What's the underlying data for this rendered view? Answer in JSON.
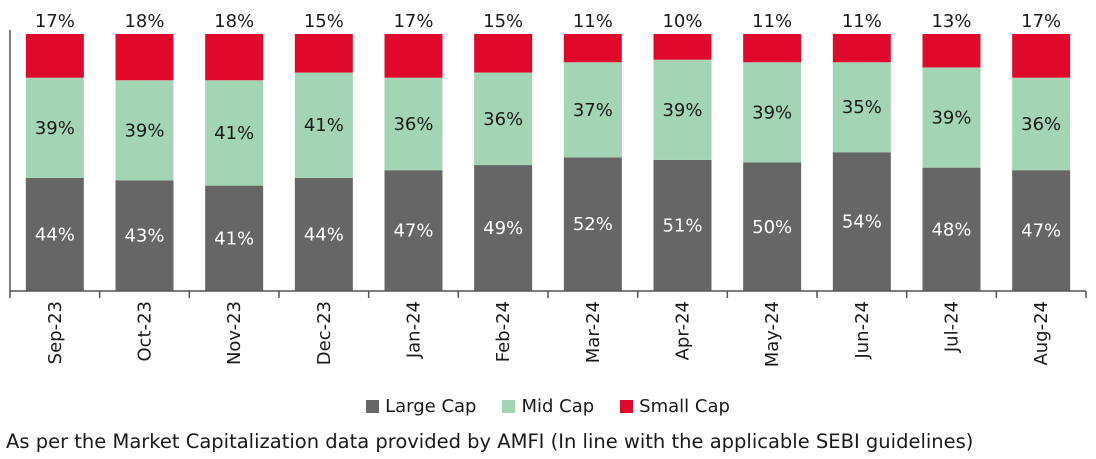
{
  "chart_data": {
    "type": "bar",
    "stacked": true,
    "categories": [
      "Sep-23",
      "Oct-23",
      "Nov-23",
      "Dec-23",
      "Jan-24",
      "Feb-24",
      "Mar-24",
      "Apr-24",
      "May-24",
      "Jun-24",
      "Jul-24",
      "Aug-24"
    ],
    "series": [
      {
        "name": "Large Cap",
        "color": "#666666",
        "values": [
          44,
          43,
          41,
          44,
          47,
          49,
          52,
          51,
          50,
          54,
          48,
          47
        ]
      },
      {
        "name": "Mid Cap",
        "color": "#a3d4b3",
        "values": [
          39,
          39,
          41,
          41,
          36,
          36,
          37,
          39,
          39,
          35,
          39,
          36
        ]
      },
      {
        "name": "Small Cap",
        "color": "#e0092c",
        "values": [
          17,
          18,
          18,
          15,
          17,
          15,
          11,
          10,
          11,
          11,
          13,
          17
        ]
      }
    ],
    "value_suffix": "%",
    "legend_position": "bottom"
  },
  "footnote": "As per the Market Capitalization data provided by AMFI (In line with the applicable SEBI guidelines)"
}
